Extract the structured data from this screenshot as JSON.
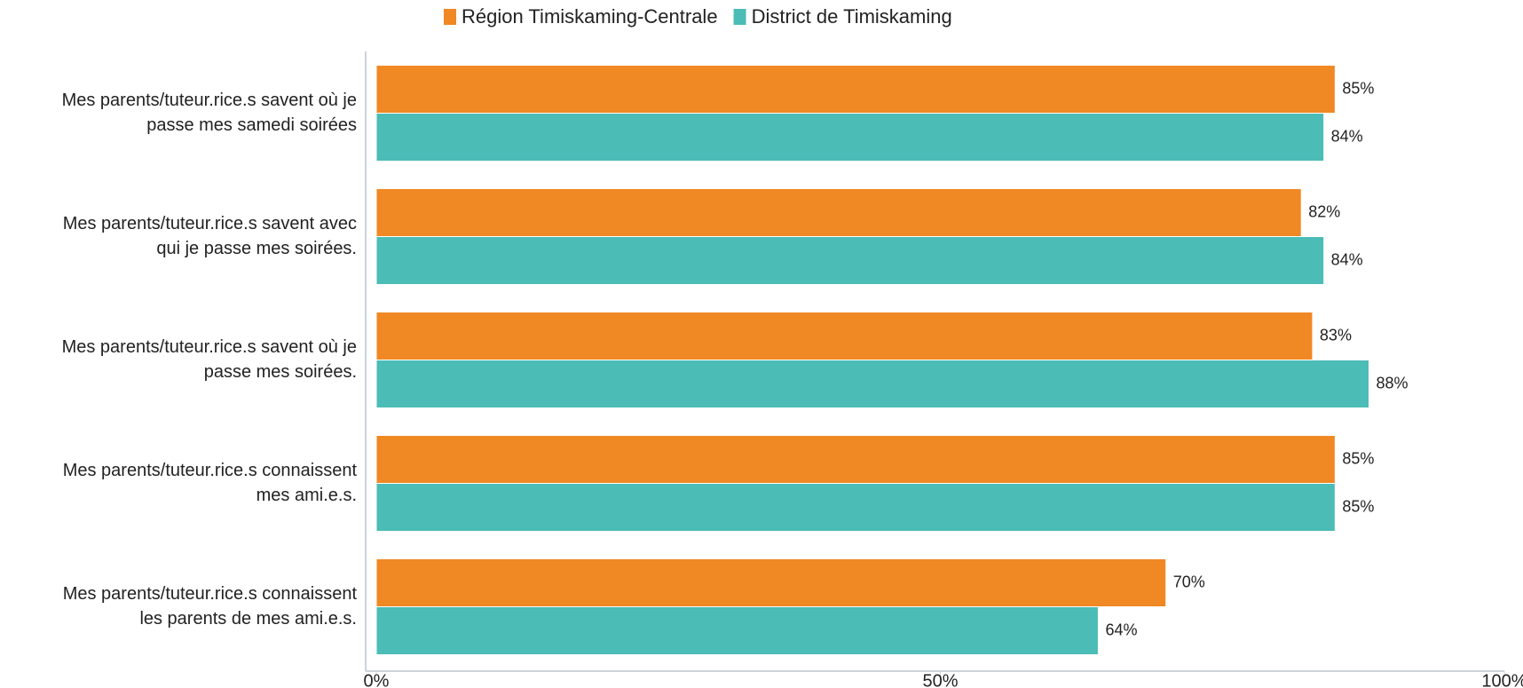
{
  "chart_data": {
    "type": "bar",
    "orientation": "horizontal",
    "categories": [
      [
        "Mes parents/tuteur.rice.s savent où je",
        "passe mes samedi soirées"
      ],
      [
        "Mes parents/tuteur.rice.s savent avec",
        "qui je passe mes soirées."
      ],
      [
        "Mes parents/tuteur.rice.s savent où je",
        "passe mes soirées."
      ],
      [
        "Mes parents/tuteur.rice.s connaissent",
        "mes ami.e.s."
      ],
      [
        "Mes parents/tuteur.rice.s connaissent",
        "les parents de mes ami.e.s."
      ]
    ],
    "series": [
      {
        "name": "Région Timiskaming-Centrale",
        "color": "#f08823",
        "values": [
          85,
          82,
          83,
          85,
          70
        ],
        "value_labels": [
          "85%",
          "82%",
          "83%",
          "85%",
          "70%"
        ]
      },
      {
        "name": "District de Timiskaming",
        "color": "#4bbcb6",
        "values": [
          84,
          84,
          88,
          85,
          64
        ],
        "value_labels": [
          "84%",
          "84%",
          "88%",
          "85%",
          "64%"
        ]
      }
    ],
    "xlim": [
      0,
      100
    ],
    "xticks": [
      {
        "value": 0,
        "label": "0%"
      },
      {
        "value": 50,
        "label": "50%"
      },
      {
        "value": 100,
        "label": "100%"
      }
    ],
    "legend": "top"
  }
}
